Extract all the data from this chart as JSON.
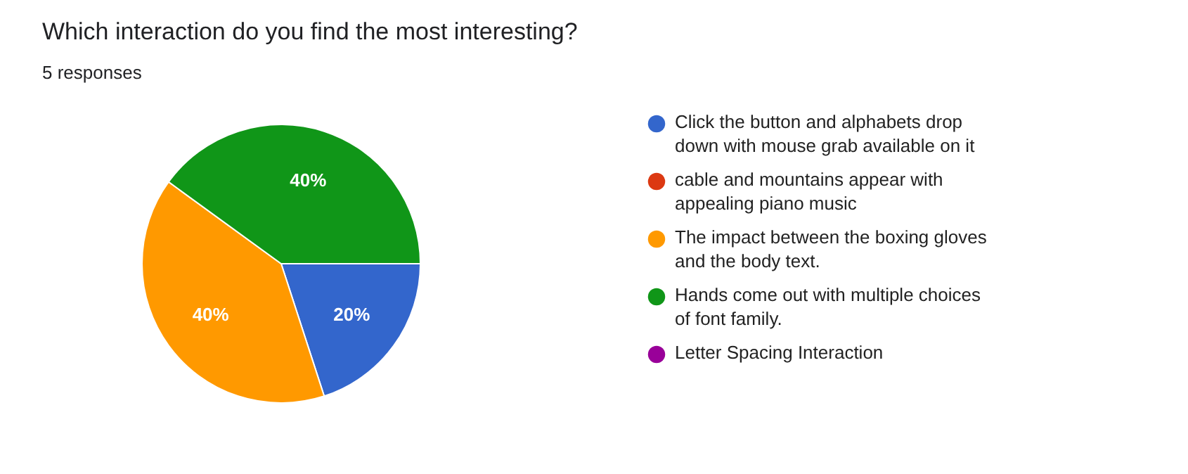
{
  "chart_data": {
    "type": "pie",
    "title": "Which interaction do you find the most interesting?",
    "subtitle": "5 responses",
    "categories": [
      "Click the button and alphabets drop down with mouse grab available on it",
      "cable and mountains appear with appealing piano music",
      "The impact between the boxing gloves and the body text.",
      "Hands come out with multiple choices of font family.",
      "Letter Spacing Interaction"
    ],
    "values": [
      20,
      0,
      40,
      40,
      0
    ],
    "colors": [
      "#3366cc",
      "#dc3912",
      "#ff9900",
      "#109618",
      "#990099"
    ],
    "value_labels": [
      "20%",
      null,
      "40%",
      "40%",
      null
    ],
    "legend": "right"
  }
}
